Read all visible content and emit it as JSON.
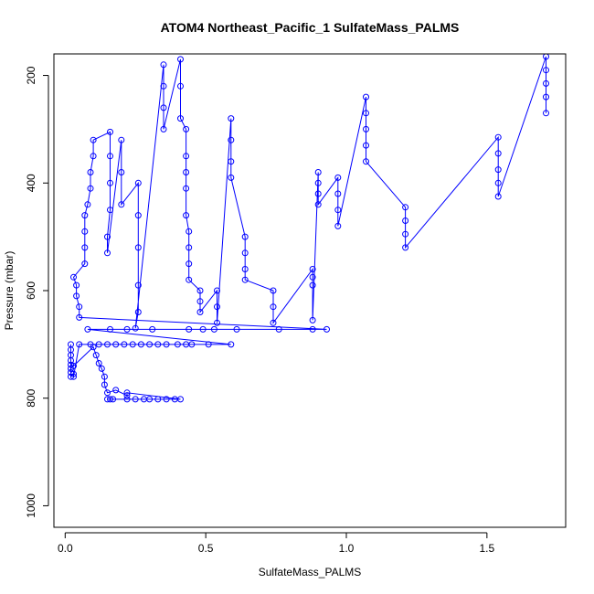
{
  "chart_data": {
    "type": "scatter",
    "title": "ATOM4 Northeast_Pacific_1 SulfateMass_PALMS",
    "xlabel": "SulfateMass_PALMS",
    "ylabel": "Pressure (mbar)",
    "xlim": [
      -0.04,
      1.78
    ],
    "ylim": [
      1040,
      160
    ],
    "y_reversed": true,
    "grid": false,
    "x_ticks": [
      0.0,
      0.5,
      1.0,
      1.5
    ],
    "x_tick_labels": [
      "0.0",
      "0.5",
      "1.0",
      "1.5"
    ],
    "y_ticks": [
      200,
      400,
      600,
      800,
      1000
    ],
    "y_tick_labels": [
      "200",
      "400",
      "600",
      "800",
      "1000"
    ],
    "series_color": "#0000ff",
    "marker": "open-circle",
    "connected": true,
    "points": [
      {
        "x": 0.15,
        "p": 802
      },
      {
        "x": 0.16,
        "p": 802
      },
      {
        "x": 0.17,
        "p": 802
      },
      {
        "x": 0.22,
        "p": 802
      },
      {
        "x": 0.25,
        "p": 802
      },
      {
        "x": 0.28,
        "p": 802
      },
      {
        "x": 0.3,
        "p": 802
      },
      {
        "x": 0.33,
        "p": 802
      },
      {
        "x": 0.36,
        "p": 802
      },
      {
        "x": 0.39,
        "p": 802
      },
      {
        "x": 0.41,
        "p": 802
      },
      {
        "x": 0.22,
        "p": 790
      },
      {
        "x": 0.22,
        "p": 795
      },
      {
        "x": 0.18,
        "p": 785
      },
      {
        "x": 0.15,
        "p": 790
      },
      {
        "x": 0.14,
        "p": 775
      },
      {
        "x": 0.14,
        "p": 760
      },
      {
        "x": 0.13,
        "p": 745
      },
      {
        "x": 0.12,
        "p": 735
      },
      {
        "x": 0.11,
        "p": 720
      },
      {
        "x": 0.1,
        "p": 705
      },
      {
        "x": 0.03,
        "p": 740
      },
      {
        "x": 0.02,
        "p": 738
      },
      {
        "x": 0.02,
        "p": 730
      },
      {
        "x": 0.02,
        "p": 720
      },
      {
        "x": 0.02,
        "p": 710
      },
      {
        "x": 0.02,
        "p": 700
      },
      {
        "x": 0.02,
        "p": 745
      },
      {
        "x": 0.02,
        "p": 752
      },
      {
        "x": 0.02,
        "p": 760
      },
      {
        "x": 0.03,
        "p": 755
      },
      {
        "x": 0.03,
        "p": 760
      },
      {
        "x": 0.05,
        "p": 700
      },
      {
        "x": 0.09,
        "p": 700
      },
      {
        "x": 0.12,
        "p": 700
      },
      {
        "x": 0.15,
        "p": 700
      },
      {
        "x": 0.18,
        "p": 700
      },
      {
        "x": 0.21,
        "p": 700
      },
      {
        "x": 0.24,
        "p": 700
      },
      {
        "x": 0.27,
        "p": 700
      },
      {
        "x": 0.3,
        "p": 700
      },
      {
        "x": 0.33,
        "p": 700
      },
      {
        "x": 0.36,
        "p": 700
      },
      {
        "x": 0.4,
        "p": 700
      },
      {
        "x": 0.43,
        "p": 700
      },
      {
        "x": 0.45,
        "p": 700
      },
      {
        "x": 0.51,
        "p": 700
      },
      {
        "x": 0.59,
        "p": 700
      },
      {
        "x": 0.08,
        "p": 672
      },
      {
        "x": 0.16,
        "p": 672
      },
      {
        "x": 0.22,
        "p": 672
      },
      {
        "x": 0.31,
        "p": 672
      },
      {
        "x": 0.44,
        "p": 672
      },
      {
        "x": 0.49,
        "p": 672
      },
      {
        "x": 0.53,
        "p": 672
      },
      {
        "x": 0.61,
        "p": 672
      },
      {
        "x": 0.76,
        "p": 672
      },
      {
        "x": 0.88,
        "p": 672
      },
      {
        "x": 0.93,
        "p": 672
      },
      {
        "x": 0.05,
        "p": 650
      },
      {
        "x": 0.05,
        "p": 630
      },
      {
        "x": 0.04,
        "p": 610
      },
      {
        "x": 0.04,
        "p": 590
      },
      {
        "x": 0.03,
        "p": 575
      },
      {
        "x": 0.07,
        "p": 550
      },
      {
        "x": 0.07,
        "p": 520
      },
      {
        "x": 0.07,
        "p": 490
      },
      {
        "x": 0.07,
        "p": 460
      },
      {
        "x": 0.08,
        "p": 440
      },
      {
        "x": 0.09,
        "p": 410
      },
      {
        "x": 0.09,
        "p": 380
      },
      {
        "x": 0.1,
        "p": 350
      },
      {
        "x": 0.1,
        "p": 320
      },
      {
        "x": 0.16,
        "p": 305
      },
      {
        "x": 0.16,
        "p": 350
      },
      {
        "x": 0.16,
        "p": 400
      },
      {
        "x": 0.16,
        "p": 450
      },
      {
        "x": 0.15,
        "p": 500
      },
      {
        "x": 0.15,
        "p": 530
      },
      {
        "x": 0.2,
        "p": 320
      },
      {
        "x": 0.2,
        "p": 380
      },
      {
        "x": 0.2,
        "p": 440
      },
      {
        "x": 0.26,
        "p": 400
      },
      {
        "x": 0.26,
        "p": 460
      },
      {
        "x": 0.26,
        "p": 520
      },
      {
        "x": 0.26,
        "p": 590
      },
      {
        "x": 0.26,
        "p": 640
      },
      {
        "x": 0.25,
        "p": 670
      },
      {
        "x": 0.35,
        "p": 180
      },
      {
        "x": 0.35,
        "p": 220
      },
      {
        "x": 0.35,
        "p": 260
      },
      {
        "x": 0.35,
        "p": 300
      },
      {
        "x": 0.41,
        "p": 170
      },
      {
        "x": 0.41,
        "p": 220
      },
      {
        "x": 0.41,
        "p": 280
      },
      {
        "x": 0.43,
        "p": 300
      },
      {
        "x": 0.43,
        "p": 350
      },
      {
        "x": 0.43,
        "p": 380
      },
      {
        "x": 0.43,
        "p": 410
      },
      {
        "x": 0.43,
        "p": 460
      },
      {
        "x": 0.44,
        "p": 490
      },
      {
        "x": 0.44,
        "p": 520
      },
      {
        "x": 0.44,
        "p": 550
      },
      {
        "x": 0.44,
        "p": 580
      },
      {
        "x": 0.48,
        "p": 600
      },
      {
        "x": 0.48,
        "p": 620
      },
      {
        "x": 0.48,
        "p": 640
      },
      {
        "x": 0.54,
        "p": 600
      },
      {
        "x": 0.54,
        "p": 630
      },
      {
        "x": 0.54,
        "p": 660
      },
      {
        "x": 0.59,
        "p": 280
      },
      {
        "x": 0.59,
        "p": 320
      },
      {
        "x": 0.59,
        "p": 360
      },
      {
        "x": 0.59,
        "p": 390
      },
      {
        "x": 0.64,
        "p": 500
      },
      {
        "x": 0.64,
        "p": 530
      },
      {
        "x": 0.64,
        "p": 560
      },
      {
        "x": 0.64,
        "p": 580
      },
      {
        "x": 0.74,
        "p": 600
      },
      {
        "x": 0.74,
        "p": 630
      },
      {
        "x": 0.74,
        "p": 660
      },
      {
        "x": 0.88,
        "p": 560
      },
      {
        "x": 0.88,
        "p": 575
      },
      {
        "x": 0.88,
        "p": 590
      },
      {
        "x": 0.88,
        "p": 655
      },
      {
        "x": 0.9,
        "p": 380
      },
      {
        "x": 0.9,
        "p": 400
      },
      {
        "x": 0.9,
        "p": 420
      },
      {
        "x": 0.9,
        "p": 440
      },
      {
        "x": 0.97,
        "p": 390
      },
      {
        "x": 0.97,
        "p": 420
      },
      {
        "x": 0.97,
        "p": 450
      },
      {
        "x": 0.97,
        "p": 480
      },
      {
        "x": 1.07,
        "p": 240
      },
      {
        "x": 1.07,
        "p": 270
      },
      {
        "x": 1.07,
        "p": 300
      },
      {
        "x": 1.07,
        "p": 330
      },
      {
        "x": 1.07,
        "p": 360
      },
      {
        "x": 1.21,
        "p": 445
      },
      {
        "x": 1.21,
        "p": 470
      },
      {
        "x": 1.21,
        "p": 495
      },
      {
        "x": 1.21,
        "p": 520
      },
      {
        "x": 1.54,
        "p": 315
      },
      {
        "x": 1.54,
        "p": 345
      },
      {
        "x": 1.54,
        "p": 375
      },
      {
        "x": 1.54,
        "p": 400
      },
      {
        "x": 1.54,
        "p": 425
      },
      {
        "x": 1.71,
        "p": 165
      },
      {
        "x": 1.71,
        "p": 190
      },
      {
        "x": 1.71,
        "p": 215
      },
      {
        "x": 1.71,
        "p": 240
      },
      {
        "x": 1.71,
        "p": 270
      }
    ]
  }
}
